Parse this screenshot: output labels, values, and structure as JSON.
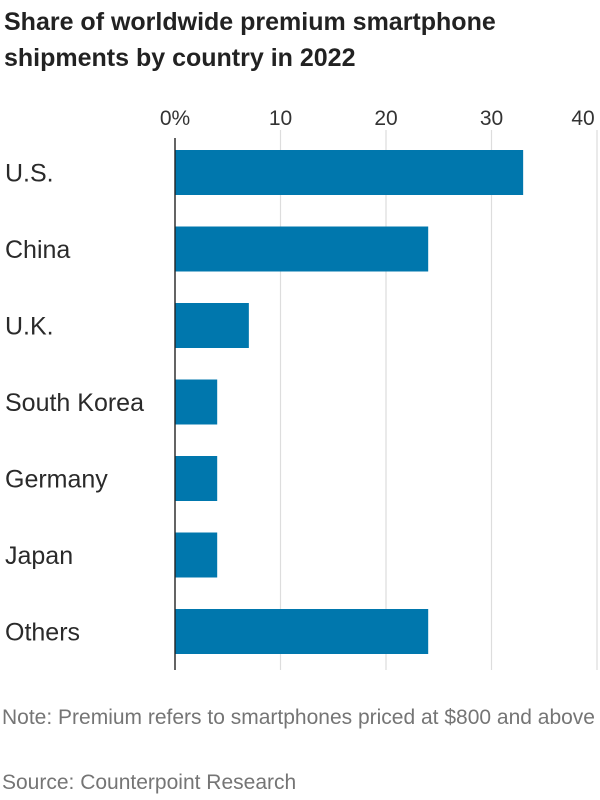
{
  "chart_data": {
    "type": "bar",
    "orientation": "horizontal",
    "title": "Share of worldwide premium smartphone shipments by country in 2022",
    "categories": [
      "U.S.",
      "China",
      "U.K.",
      "South Korea",
      "Germany",
      "Japan",
      "Others"
    ],
    "values": [
      33,
      24,
      7,
      4,
      4,
      4,
      24
    ],
    "xlim": [
      0,
      40
    ],
    "ticks": [
      0,
      10,
      20,
      30,
      40
    ],
    "tick_labels": [
      "0%",
      "10",
      "20",
      "30",
      "40"
    ],
    "xlabel": "",
    "ylabel": "",
    "grid": true,
    "colors": {
      "bar": "#0077ad",
      "grid": "#dddddd",
      "axis": "#222222"
    }
  },
  "note": "Note: Premium refers to smartphones priced at $800 and above",
  "source": "Source: Counterpoint Research"
}
